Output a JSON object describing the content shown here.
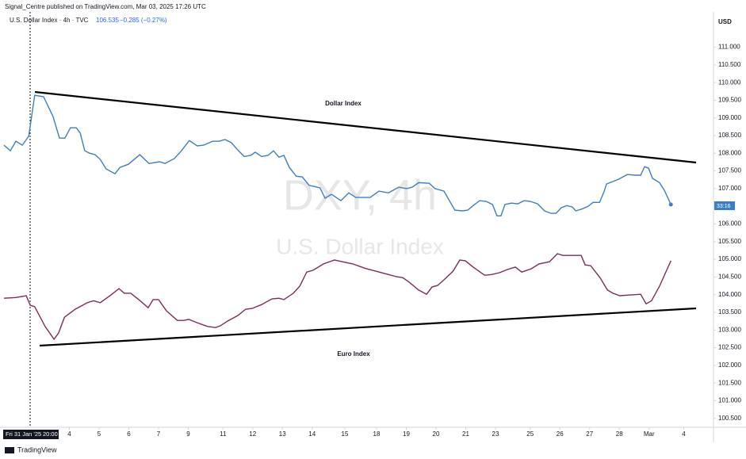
{
  "header": {
    "text": "Signal_Centre published on TradingView.com, Mar 03, 2025 17:26 UTC"
  },
  "legend": {
    "symbol": "U.S. Dollar Index · 4h · TVC",
    "price": "106.535",
    "change": "−0.285 (−0.27%)"
  },
  "watermark": {
    "ticker": "DXY, 4h",
    "name": "U.S. Dollar Index"
  },
  "axis_unit": "USD",
  "countdown": "33:16",
  "crosshair": {
    "date": "Fri 31 Jan '25",
    "time": "20:00"
  },
  "footer": {
    "brand": "TradingView"
  },
  "chart_data": {
    "type": "line",
    "xlim": [
      -6,
      138
    ],
    "ylim": [
      100.27,
      112.0
    ],
    "xticks": [
      {
        "value": 8,
        "label": "4"
      },
      {
        "value": 14,
        "label": "5"
      },
      {
        "value": 20,
        "label": "6"
      },
      {
        "value": 26,
        "label": "7"
      },
      {
        "value": 32,
        "label": "9"
      },
      {
        "value": 39,
        "label": "11"
      },
      {
        "value": 45,
        "label": "12"
      },
      {
        "value": 51,
        "label": "13"
      },
      {
        "value": 57,
        "label": "14"
      },
      {
        "value": 63.6,
        "label": "15"
      },
      {
        "value": 70,
        "label": "18"
      },
      {
        "value": 76,
        "label": "19"
      },
      {
        "value": 82,
        "label": "20"
      },
      {
        "value": 88,
        "label": "21"
      },
      {
        "value": 94,
        "label": "23"
      },
      {
        "value": 101,
        "label": "25"
      },
      {
        "value": 107,
        "label": "26"
      },
      {
        "value": 113,
        "label": "27"
      },
      {
        "value": 119,
        "label": "28"
      },
      {
        "value": 125,
        "label": "Mar"
      },
      {
        "value": 132,
        "label": "4"
      }
    ],
    "yticks": [
      {
        "value": 111,
        "label": "111.000"
      },
      {
        "value": 110.5,
        "label": "110.500"
      },
      {
        "value": 110,
        "label": "110.000"
      },
      {
        "value": 109.5,
        "label": "109.500"
      },
      {
        "value": 109,
        "label": "109.000"
      },
      {
        "value": 108.5,
        "label": "108.500"
      },
      {
        "value": 108,
        "label": "108.000"
      },
      {
        "value": 107.5,
        "label": "107.500"
      },
      {
        "value": 107,
        "label": "107.000"
      },
      {
        "value": 106,
        "label": "106.000"
      },
      {
        "value": 105.5,
        "label": "105.500"
      },
      {
        "value": 105,
        "label": "105.000"
      },
      {
        "value": 104.5,
        "label": "104.500"
      },
      {
        "value": 104,
        "label": "104.000"
      },
      {
        "value": 103.5,
        "label": "103.500"
      },
      {
        "value": 103,
        "label": "103.000"
      },
      {
        "value": 102.5,
        "label": "102.500"
      },
      {
        "value": 102,
        "label": "102.000"
      },
      {
        "value": 101.5,
        "label": "101.500"
      },
      {
        "value": 101,
        "label": "101.000"
      },
      {
        "value": 100.5,
        "label": "100.500"
      }
    ],
    "series": [
      {
        "name": "Dollar Index",
        "color": "#3b7fc2",
        "x": [
          -5.2,
          -3.9,
          -2.8,
          -1.5,
          -0.2,
          1.0,
          2.8,
          4.7,
          6,
          7.1,
          8.2,
          9.4,
          10.2,
          11.1,
          12.1,
          13.2,
          14.2,
          15.4,
          17.2,
          18.2,
          19.9,
          22.2,
          24.1,
          26.2,
          27.3,
          29.2,
          30.6,
          32.2,
          33.8,
          35.1,
          36.9,
          38.2,
          39.4,
          40.7,
          42,
          43.3,
          44.6,
          45.5,
          46.8,
          48.1,
          49.2,
          50.3,
          51.3,
          52.4,
          53.8,
          55,
          56.4,
          57.5,
          58.6,
          59.6,
          60.9,
          62.8,
          64.4,
          65.8,
          67.4,
          68.7,
          70.5,
          72.4,
          74.5,
          76.1,
          77.2,
          78.5,
          80.6,
          81.8,
          83.6,
          84.9,
          85.8,
          87.3,
          88.4,
          89.5,
          90.8,
          92.1,
          93.4,
          94.3,
          95.1,
          95.9,
          97.2,
          98.5,
          99.8,
          101,
          102.5,
          103.9,
          105.2,
          106.2,
          107.3,
          108.4,
          109.5,
          110.2,
          111.6,
          112.7,
          113.7,
          115,
          115.9,
          116.4,
          118.8,
          120.6,
          122.2,
          123.3,
          124.1,
          124.9,
          125.7,
          127.1,
          128.1,
          129.4
        ],
        "values": [
          108.23,
          108.07,
          108.34,
          108.23,
          108.48,
          109.64,
          109.6,
          109.04,
          108.43,
          108.43,
          108.72,
          108.72,
          108.57,
          108.07,
          108.0,
          107.96,
          107.83,
          107.56,
          107.42,
          107.6,
          107.69,
          107.96,
          107.71,
          107.76,
          107.71,
          107.85,
          108.07,
          108.36,
          108.21,
          108.23,
          108.34,
          108.34,
          108.39,
          108.3,
          108.09,
          107.91,
          107.94,
          108.03,
          107.91,
          107.94,
          108.07,
          107.89,
          107.94,
          107.6,
          107.35,
          107.33,
          107.09,
          107.06,
          107.02,
          106.73,
          106.84,
          106.66,
          106.88,
          106.75,
          106.75,
          106.75,
          106.93,
          106.88,
          107.04,
          107.0,
          107.04,
          107.17,
          107.15,
          107.0,
          106.93,
          106.61,
          106.39,
          106.37,
          106.39,
          106.52,
          106.66,
          106.64,
          106.55,
          106.23,
          106.23,
          106.55,
          106.59,
          106.57,
          106.66,
          106.64,
          106.57,
          106.37,
          106.3,
          106.3,
          106.46,
          106.52,
          106.48,
          106.37,
          106.43,
          106.5,
          106.61,
          106.61,
          106.91,
          107.13,
          107.26,
          107.4,
          107.38,
          107.38,
          107.62,
          107.58,
          107.29,
          107.17,
          106.95,
          106.55
        ]
      },
      {
        "name": "Euro Index",
        "color": "#7a2d5c",
        "x": [
          -5.2,
          -2.8,
          -0.7,
          0.1,
          1.0,
          3.1,
          4.9,
          5.8,
          7.0,
          9.2,
          11.6,
          12.9,
          14.2,
          16.4,
          18,
          19.1,
          20.4,
          22,
          23.9,
          24.9,
          26,
          27.6,
          29.8,
          31.1,
          32.1,
          33.7,
          35.9,
          37.5,
          38.5,
          39.9,
          42,
          43.6,
          44.9,
          46.8,
          48.9,
          50.3,
          51.3,
          53.2,
          54.5,
          55.9,
          57.2,
          59.3,
          61.5,
          63.1,
          65.2,
          67.6,
          70,
          72.4,
          74,
          75.3,
          76.6,
          78.5,
          80.1,
          81.2,
          82.3,
          83.6,
          85.4,
          86.8,
          87.9,
          89.5,
          91.8,
          93.2,
          94.8,
          96.4,
          98,
          99.3,
          101.2,
          102.8,
          104.9,
          106.5,
          107.6,
          109.2,
          111.3,
          112.1,
          113.2,
          115.1,
          116.6,
          117.7,
          119.1,
          121.2,
          123.3,
          124.4,
          125.5,
          127.1,
          129.4
        ],
        "values": [
          103.9,
          103.92,
          103.97,
          103.7,
          103.66,
          103.1,
          102.74,
          102.91,
          103.36,
          103.59,
          103.77,
          103.83,
          103.77,
          103.99,
          104.17,
          104.04,
          104.04,
          103.86,
          103.63,
          103.86,
          103.86,
          103.54,
          103.27,
          103.27,
          103.3,
          103.21,
          103.1,
          103.07,
          103.12,
          103.25,
          103.41,
          103.59,
          103.61,
          103.72,
          103.88,
          103.9,
          103.86,
          104.04,
          104.24,
          104.64,
          104.69,
          104.87,
          104.98,
          104.93,
          104.87,
          104.75,
          104.66,
          104.57,
          104.51,
          104.48,
          104.35,
          104.13,
          104.01,
          104.22,
          104.26,
          104.42,
          104.66,
          104.98,
          104.96,
          104.78,
          104.55,
          104.57,
          104.62,
          104.71,
          104.78,
          104.64,
          104.73,
          104.87,
          104.93,
          105.16,
          105.11,
          105.11,
          105.11,
          104.84,
          104.82,
          104.48,
          104.13,
          104.04,
          103.97,
          103.99,
          104.01,
          103.74,
          103.83,
          104.24,
          104.96
        ]
      }
    ]
  }
}
